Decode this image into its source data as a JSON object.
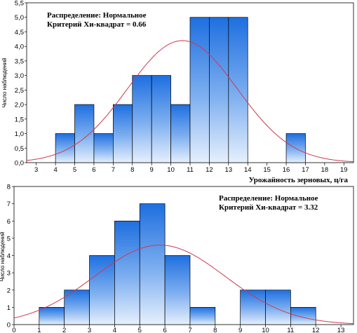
{
  "chart_data": [
    {
      "type": "bar",
      "subtype": "histogram",
      "bin_edges": [
        4,
        5,
        6,
        7,
        8,
        9,
        10,
        11,
        12,
        13,
        14,
        15,
        16,
        17
      ],
      "values": [
        1,
        2,
        1,
        2,
        3,
        3,
        2,
        5,
        5,
        5,
        0,
        0,
        1
      ],
      "fit_curve": {
        "distribution": "normal",
        "mean": 10.6,
        "sd": 2.85,
        "n": 30,
        "bin_width": 1,
        "color": "#d0394e"
      },
      "xlim": [
        2.5,
        19.5
      ],
      "xticks": [
        "3",
        "4",
        "5",
        "6",
        "7",
        "8",
        "9",
        "10",
        "11",
        "12",
        "13",
        "14",
        "15",
        "16",
        "17",
        "18",
        "19"
      ],
      "ylim": [
        0,
        5.5
      ],
      "yticks": [
        "0,0",
        "0,5",
        "1,0",
        "1,5",
        "2,0",
        "2,5",
        "3,0",
        "3,5",
        "4,0",
        "4,5",
        "5,0",
        "5,5"
      ],
      "ylabel": "Число наблюдений",
      "xlabel": "Урожайность зерновых, ц/га",
      "annotation": [
        "Распределение: Нормальное",
        "Критерий Хи-квадрат = 0.66"
      ],
      "annotation_position": "top-left",
      "bar_color": "#1e6fe0"
    },
    {
      "type": "bar",
      "subtype": "histogram",
      "bin_edges": [
        1,
        2,
        3,
        4,
        5,
        6,
        7,
        8,
        9,
        10,
        11,
        12
      ],
      "values": [
        1,
        2,
        4,
        6,
        7,
        4,
        1,
        0,
        2,
        2,
        1
      ],
      "fit_curve": {
        "distribution": "normal",
        "mean": 5.8,
        "sd": 2.6,
        "n": 30,
        "bin_width": 1,
        "color": "#d0394e"
      },
      "xlim": [
        0,
        13.5
      ],
      "xticks": [
        "0",
        "1",
        "2",
        "3",
        "4",
        "5",
        "6",
        "7",
        "8",
        "9",
        "10",
        "11",
        "12",
        "13"
      ],
      "ylim": [
        0,
        8
      ],
      "yticks": [
        "0",
        "1",
        "2",
        "3",
        "4",
        "5",
        "6",
        "7",
        "8"
      ],
      "ylabel": "Число наблюдений",
      "xlabel": "",
      "annotation": [
        "Распределение: Нормальное",
        "Критерий Хи-квадрат = 3.32"
      ],
      "annotation_position": "top-right",
      "bar_color": "#1e6fe0"
    }
  ]
}
